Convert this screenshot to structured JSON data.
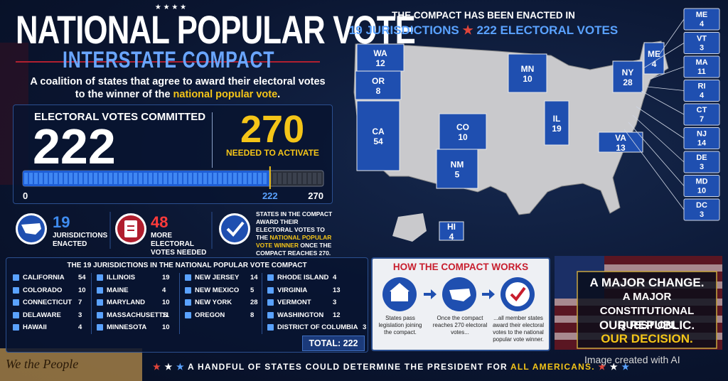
{
  "header": {
    "title": "NATIONAL POPULAR VOTE",
    "subtitle": "INTERSTATE COMPACT",
    "description": [
      "A coalition of states that agree to award their electoral votes to the winner of the ",
      "national popular vote",
      "."
    ]
  },
  "gauge": {
    "label": "ELECTORAL VOTES COMMITTED",
    "committed": "222",
    "target": "270",
    "target_label": "NEEDED TO ACTIVATE",
    "scale": [
      0,
      222,
      270
    ]
  },
  "stats": [
    {
      "value": "19",
      "label": "JURISDICTIONS ENACTED"
    },
    {
      "value": "48",
      "label": "MORE ELECTORAL VOTES NEEDED"
    },
    {
      "text": [
        "STATES IN THE COMPACT AWARD THEIR ELECTORAL VOTES TO THE ",
        "NATIONAL POPULAR VOTE WINNER",
        " ONCE THE COMPACT REACHES 270."
      ]
    }
  ],
  "map": {
    "heading": "THE COMPACT HAS BEEN ENACTED IN",
    "jurisdictions": "19 JURISDICTIONS",
    "votes": "222 ELECTORAL VOTES",
    "states": [
      {
        "abbr": "WA",
        "votes": "12"
      },
      {
        "abbr": "OR",
        "votes": "8"
      },
      {
        "abbr": "CA",
        "votes": "54"
      },
      {
        "abbr": "MN",
        "votes": "10"
      },
      {
        "abbr": "CO",
        "votes": "10"
      },
      {
        "abbr": "NM",
        "votes": "5"
      },
      {
        "abbr": "IL",
        "votes": "19"
      },
      {
        "abbr": "NY",
        "votes": "28"
      },
      {
        "abbr": "VA",
        "votes": "13"
      },
      {
        "abbr": "ME",
        "votes": "4"
      },
      {
        "abbr": "HI",
        "votes": "4"
      }
    ],
    "callouts": [
      {
        "abbr": "ME",
        "votes": "4"
      },
      {
        "abbr": "VT",
        "votes": "3"
      },
      {
        "abbr": "MA",
        "votes": "11"
      },
      {
        "abbr": "RI",
        "votes": "4"
      },
      {
        "abbr": "CT",
        "votes": "7"
      },
      {
        "abbr": "NJ",
        "votes": "14"
      },
      {
        "abbr": "DE",
        "votes": "3"
      },
      {
        "abbr": "MD",
        "votes": "10"
      },
      {
        "abbr": "DC",
        "votes": "3"
      }
    ]
  },
  "list": {
    "title": "THE 19 JURISDICTIONS IN THE NATIONAL POPULAR VOTE COMPACT",
    "columns": [
      [
        [
          "CALIFORNIA",
          "54"
        ],
        [
          "COLORADO",
          "10"
        ],
        [
          "CONNECTICUT",
          "7"
        ],
        [
          "DELAWARE",
          "3"
        ],
        [
          "HAWAII",
          "4"
        ]
      ],
      [
        [
          "ILLINOIS",
          "19"
        ],
        [
          "MAINE",
          "4"
        ],
        [
          "MARYLAND",
          "10"
        ],
        [
          "MASSACHUSETTS",
          "11"
        ],
        [
          "MINNESOTA",
          "10"
        ]
      ],
      [
        [
          "NEW JERSEY",
          "14"
        ],
        [
          "NEW MEXICO",
          "5"
        ],
        [
          "NEW YORK",
          "28"
        ],
        [
          "OREGON",
          "8"
        ]
      ],
      [
        [
          "RHODE ISLAND",
          "4"
        ],
        [
          "VIRGINIA",
          "13"
        ],
        [
          "VERMONT",
          "3"
        ],
        [
          "WASHINGTON",
          "12"
        ],
        [
          "DISTRICT OF COLUMBIA",
          "3"
        ]
      ]
    ],
    "total": "TOTAL: 222"
  },
  "how": {
    "title": "HOW THE COMPACT WORKS",
    "steps": [
      "States pass legislation joining the compact.",
      "Once the compact reaches 270 electoral votes...",
      "...all member states award their electoral votes to the national popular vote winner."
    ]
  },
  "message": [
    "A MAJOR CHANGE.",
    "A MAJOR CONSTITUTIONAL QUESTION.",
    "OUR REPUBLIC.",
    "OUR DECISION."
  ],
  "footer": [
    "A HANDFUL OF STATES COULD DETERMINE THE PRESIDENT FOR ",
    "ALL AMERICANS."
  ],
  "credit": "Image created with AI",
  "seal": "We the People"
}
